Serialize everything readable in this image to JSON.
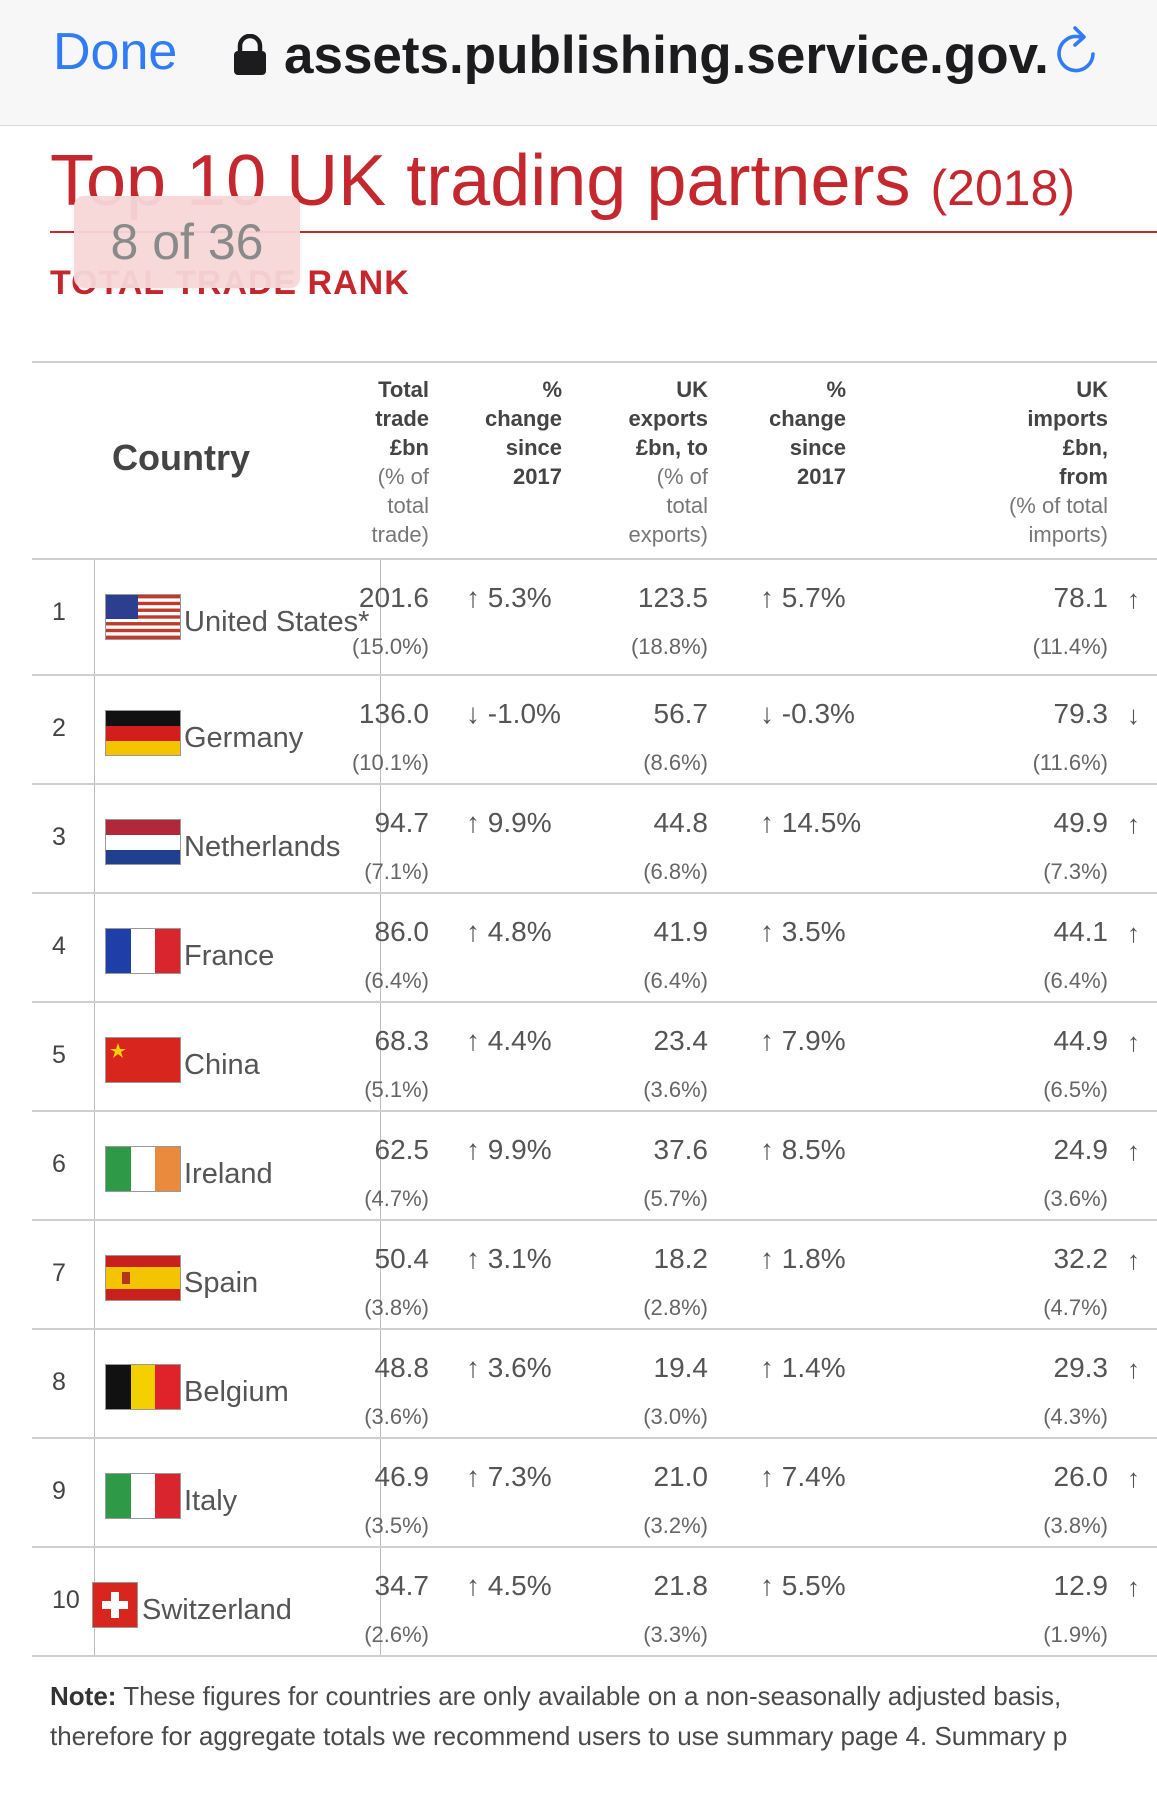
{
  "browser": {
    "done_label": "Done",
    "url": "assets.publishing.service.gov.",
    "lock_icon": "lock-icon",
    "reload_icon": "reload-icon"
  },
  "document": {
    "title": "Top 10 UK trading partners",
    "title_year": "(2018)",
    "subheading": "TOTAL TRADE RANK",
    "page_indicator": "8 of 36"
  },
  "table": {
    "headers": {
      "country": "Country",
      "total_trade": {
        "main": [
          "Total",
          "trade",
          "£bn"
        ],
        "sub": [
          "(% of",
          "total",
          "trade)"
        ]
      },
      "change_total": {
        "main": [
          "%",
          "change",
          "since",
          "2017"
        ]
      },
      "exports": {
        "main": [
          "UK",
          "exports",
          "£bn, to"
        ],
        "sub": [
          "(% of",
          "total",
          "exports)"
        ]
      },
      "change_exports": {
        "main": [
          "%",
          "change",
          "since",
          "2017"
        ]
      },
      "imports": {
        "main": [
          "UK",
          "imports",
          "£bn,",
          "from"
        ],
        "sub": [
          "(% of total",
          "imports)"
        ]
      }
    },
    "rows": [
      {
        "rank": "1",
        "country": "United States*",
        "flag": "us",
        "trade": "201.6",
        "trade_pct": "(15.0%)",
        "trade_chg": "↑ 5.3%",
        "exports": "123.5",
        "exports_pct": "(18.8%)",
        "exports_chg": "↑ 5.7%",
        "imports": "78.1",
        "imports_pct": "(11.4%)",
        "imports_arrow": "↑"
      },
      {
        "rank": "2",
        "country": "Germany",
        "flag": "de",
        "trade": "136.0",
        "trade_pct": "(10.1%)",
        "trade_chg": "↓ -1.0%",
        "exports": "56.7",
        "exports_pct": "(8.6%)",
        "exports_chg": "↓ -0.3%",
        "imports": "79.3",
        "imports_pct": "(11.6%)",
        "imports_arrow": "↓"
      },
      {
        "rank": "3",
        "country": "Netherlands",
        "flag": "nl",
        "trade": "94.7",
        "trade_pct": "(7.1%)",
        "trade_chg": "↑ 9.9%",
        "exports": "44.8",
        "exports_pct": "(6.8%)",
        "exports_chg": "↑ 14.5%",
        "imports": "49.9",
        "imports_pct": "(7.3%)",
        "imports_arrow": "↑"
      },
      {
        "rank": "4",
        "country": "France",
        "flag": "fr",
        "trade": "86.0",
        "trade_pct": "(6.4%)",
        "trade_chg": "↑ 4.8%",
        "exports": "41.9",
        "exports_pct": "(6.4%)",
        "exports_chg": "↑ 3.5%",
        "imports": "44.1",
        "imports_pct": "(6.4%)",
        "imports_arrow": "↑"
      },
      {
        "rank": "5",
        "country": "China",
        "flag": "cn",
        "trade": "68.3",
        "trade_pct": "(5.1%)",
        "trade_chg": "↑ 4.4%",
        "exports": "23.4",
        "exports_pct": "(3.6%)",
        "exports_chg": "↑ 7.9%",
        "imports": "44.9",
        "imports_pct": "(6.5%)",
        "imports_arrow": "↑"
      },
      {
        "rank": "6",
        "country": "Ireland",
        "flag": "ie",
        "trade": "62.5",
        "trade_pct": "(4.7%)",
        "trade_chg": "↑ 9.9%",
        "exports": "37.6",
        "exports_pct": "(5.7%)",
        "exports_chg": "↑ 8.5%",
        "imports": "24.9",
        "imports_pct": "(3.6%)",
        "imports_arrow": "↑"
      },
      {
        "rank": "7",
        "country": "Spain",
        "flag": "es",
        "trade": "50.4",
        "trade_pct": "(3.8%)",
        "trade_chg": "↑ 3.1%",
        "exports": "18.2",
        "exports_pct": "(2.8%)",
        "exports_chg": "↑ 1.8%",
        "imports": "32.2",
        "imports_pct": "(4.7%)",
        "imports_arrow": "↑"
      },
      {
        "rank": "8",
        "country": "Belgium",
        "flag": "be",
        "trade": "48.8",
        "trade_pct": "(3.6%)",
        "trade_chg": "↑ 3.6%",
        "exports": "19.4",
        "exports_pct": "(3.0%)",
        "exports_chg": "↑ 1.4%",
        "imports": "29.3",
        "imports_pct": "(4.3%)",
        "imports_arrow": "↑"
      },
      {
        "rank": "9",
        "country": "Italy",
        "flag": "it",
        "trade": "46.9",
        "trade_pct": "(3.5%)",
        "trade_chg": "↑ 7.3%",
        "exports": "21.0",
        "exports_pct": "(3.2%)",
        "exports_chg": "↑ 7.4%",
        "imports": "26.0",
        "imports_pct": "(3.8%)",
        "imports_arrow": "↑"
      },
      {
        "rank": "10",
        "country": "Switzerland",
        "flag": "ch",
        "trade": "34.7",
        "trade_pct": "(2.6%)",
        "trade_chg": "↑ 4.5%",
        "exports": "21.8",
        "exports_pct": "(3.3%)",
        "exports_chg": "↑ 5.5%",
        "imports": "12.9",
        "imports_pct": "(1.9%)",
        "imports_arrow": "↑"
      }
    ]
  },
  "note": {
    "label": "Note:",
    "line1": " These figures for countries are only available on a non-seasonally adjusted basis,",
    "line2": "therefore for aggregate totals we recommend users to use summary page 4. Summary p"
  },
  "colors": {
    "accent_red": "#c4282e",
    "link_blue": "#2f7cf6",
    "badge_pink": "#f7d7d8"
  }
}
